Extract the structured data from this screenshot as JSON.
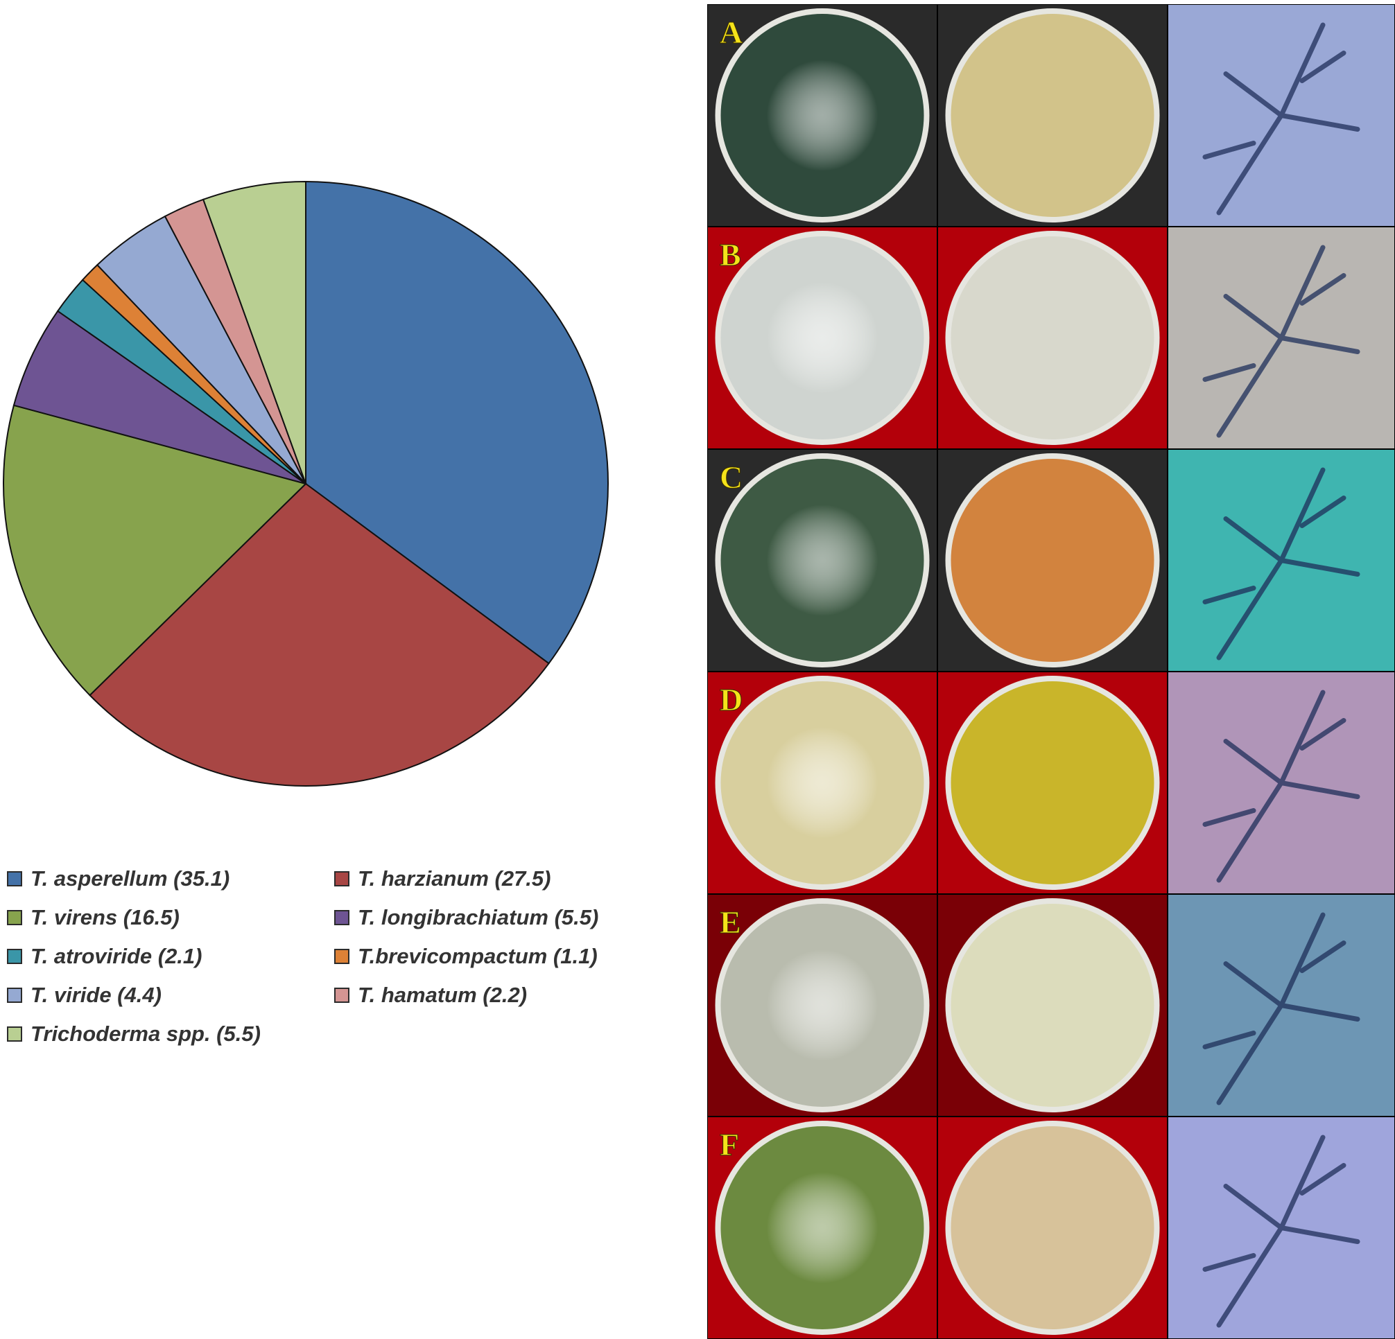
{
  "chart_data": {
    "type": "pie",
    "title": "",
    "slices": [
      {
        "label": "T. asperellum (35.1)",
        "value": 35.1,
        "color": "#4472a8"
      },
      {
        "label": "T. harzianum (27.5)",
        "value": 27.5,
        "color": "#a84644"
      },
      {
        "label": "T. virens (16.5)",
        "value": 16.5,
        "color": "#87a34d"
      },
      {
        "label": "T. longibrachiatum (5.5)",
        "value": 5.5,
        "color": "#6e5493"
      },
      {
        "label": "T. atroviride (2.1)",
        "value": 2.1,
        "color": "#3a96a8"
      },
      {
        "label": "T.brevicompactum (1.1)",
        "value": 1.1,
        "color": "#dd8136"
      },
      {
        "label": "T. viride (4.4)",
        "value": 4.4,
        "color": "#95a9d2"
      },
      {
        "label": "T. hamatum (2.2)",
        "value": 2.2,
        "color": "#d49593"
      },
      {
        "label": "Trichoderma spp. (5.5)",
        "value": 5.5,
        "color": "#b9cf92"
      }
    ],
    "legend_order": [
      "T. asperellum (35.1)",
      "T. harzianum (27.5)",
      "T. virens (16.5)",
      "T. longibrachiatum (5.5)",
      "T. atroviride (2.1)",
      "T.brevicompactum (1.1)",
      "T. viride (4.4)",
      "T. hamatum (2.2)",
      "Trichoderma spp. (5.5)"
    ],
    "legend_placement": "bottom"
  },
  "photo_panel": {
    "rows": [
      {
        "label": "A",
        "colors": [
          "#2f4a3c",
          "#d2c38a",
          "#9aa8d6"
        ],
        "bg": "#2a2a2a"
      },
      {
        "label": "B",
        "colors": [
          "#cfd4d0",
          "#d8d8cc",
          "#b9b6b2"
        ],
        "bg": "#b3000a"
      },
      {
        "label": "C",
        "colors": [
          "#3e5a44",
          "#d2833e",
          "#3fb5b0"
        ],
        "bg": "#2a2a2a"
      },
      {
        "label": "D",
        "colors": [
          "#d8cf9e",
          "#c9b52a",
          "#b095b8"
        ],
        "bg": "#b3000a"
      },
      {
        "label": "E",
        "colors": [
          "#b9bcae",
          "#dcdcbc",
          "#6d96b4"
        ],
        "bg": "#7a0006"
      },
      {
        "label": "F",
        "colors": [
          "#6c8a40",
          "#d7c29a",
          "#9fa5dc"
        ],
        "bg": "#b3000a"
      }
    ]
  }
}
